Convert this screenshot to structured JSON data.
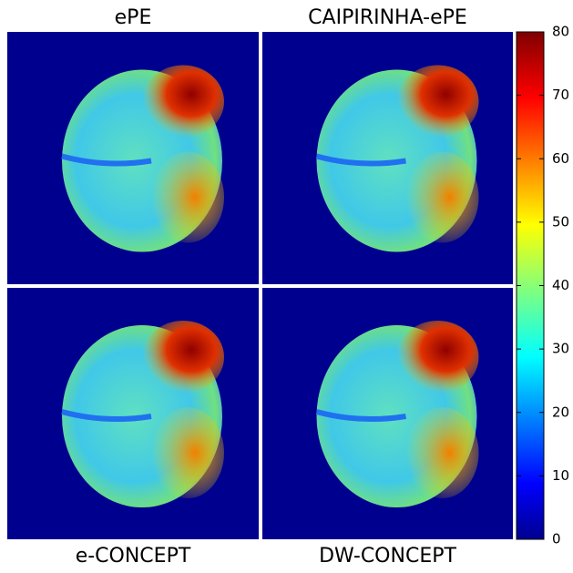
{
  "chart_data": {
    "type": "image",
    "panels": [
      "ePE",
      "CAIPIRINHA-ePE",
      "e-CONCEPT",
      "DW-CONCEPT"
    ],
    "colormap": "jet",
    "clim": [
      0,
      80
    ],
    "cticks": [
      0,
      10,
      20,
      30,
      40,
      50,
      60,
      70,
      80
    ]
  }
}
